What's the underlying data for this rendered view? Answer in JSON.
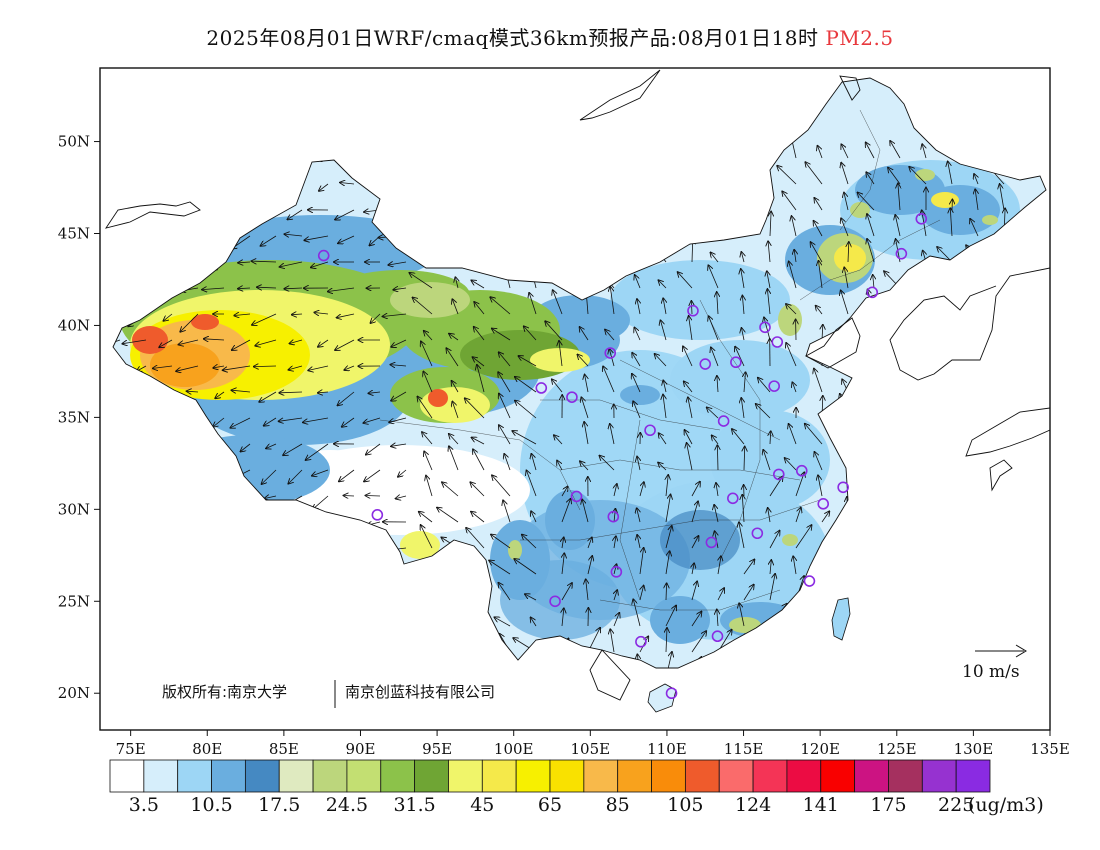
{
  "title": {
    "main": "2025年08月01日WRF/cmaq模式36km预报产品:08月01日18时",
    "product": "PM2.5"
  },
  "map": {
    "lon_range": [
      73,
      135
    ],
    "lat_range": [
      18,
      54
    ],
    "lat_ticks": [
      {
        "value": 20,
        "label": "20N"
      },
      {
        "value": 25,
        "label": "25N"
      },
      {
        "value": 30,
        "label": "30N"
      },
      {
        "value": 35,
        "label": "35N"
      },
      {
        "value": 40,
        "label": "40N"
      },
      {
        "value": 45,
        "label": "45N"
      },
      {
        "value": 50,
        "label": "50N"
      }
    ],
    "lon_ticks": [
      {
        "value": 75,
        "label": "75E"
      },
      {
        "value": 80,
        "label": "80E"
      },
      {
        "value": 85,
        "label": "85E"
      },
      {
        "value": 90,
        "label": "90E"
      },
      {
        "value": 95,
        "label": "95E"
      },
      {
        "value": 100,
        "label": "100E"
      },
      {
        "value": 105,
        "label": "105E"
      },
      {
        "value": 110,
        "label": "110E"
      },
      {
        "value": 115,
        "label": "115E"
      },
      {
        "value": 120,
        "label": "120E"
      },
      {
        "value": 125,
        "label": "125E"
      },
      {
        "value": 130,
        "label": "130E"
      },
      {
        "value": 135,
        "label": "135E"
      }
    ],
    "copyright_left": "版权所有:南京大学",
    "copyright_right": "南京创蓝科技有限公司",
    "wind_reference": "10 m/s",
    "colors": {
      "very_low": "#d6eefb",
      "low": "#9dd6f5",
      "mid_blue": "#6aaedf",
      "deep_blue": "#4589c2",
      "light_green": "#bcd67c",
      "green": "#8cc24a",
      "yellow": "#f7f000",
      "orange": "#f8a21d",
      "red_orange": "#ef5b2c",
      "station_marker": "#8b2be2"
    },
    "stations": [
      {
        "lon": 87.6,
        "lat": 43.8
      },
      {
        "lon": 91.1,
        "lat": 29.7
      },
      {
        "lon": 101.8,
        "lat": 36.6
      },
      {
        "lon": 103.8,
        "lat": 36.1
      },
      {
        "lon": 106.3,
        "lat": 38.5
      },
      {
        "lon": 104.1,
        "lat": 30.7
      },
      {
        "lon": 106.5,
        "lat": 29.6
      },
      {
        "lon": 106.7,
        "lat": 26.6
      },
      {
        "lon": 102.7,
        "lat": 25.0
      },
      {
        "lon": 108.9,
        "lat": 34.3
      },
      {
        "lon": 111.7,
        "lat": 40.8
      },
      {
        "lon": 112.5,
        "lat": 37.9
      },
      {
        "lon": 114.5,
        "lat": 38.0
      },
      {
        "lon": 116.4,
        "lat": 39.9
      },
      {
        "lon": 117.2,
        "lat": 39.1
      },
      {
        "lon": 117.0,
        "lat": 36.7
      },
      {
        "lon": 113.7,
        "lat": 34.8
      },
      {
        "lon": 117.3,
        "lat": 31.9
      },
      {
        "lon": 118.8,
        "lat": 32.1
      },
      {
        "lon": 121.5,
        "lat": 31.2
      },
      {
        "lon": 120.2,
        "lat": 30.3
      },
      {
        "lon": 114.3,
        "lat": 30.6
      },
      {
        "lon": 112.9,
        "lat": 28.2
      },
      {
        "lon": 115.9,
        "lat": 28.7
      },
      {
        "lon": 119.3,
        "lat": 26.1
      },
      {
        "lon": 113.3,
        "lat": 23.1
      },
      {
        "lon": 108.3,
        "lat": 22.8
      },
      {
        "lon": 110.3,
        "lat": 20.0
      },
      {
        "lon": 123.4,
        "lat": 41.8
      },
      {
        "lon": 125.3,
        "lat": 43.9
      },
      {
        "lon": 126.6,
        "lat": 45.8
      }
    ]
  },
  "legend": {
    "colors": [
      "#ffffff",
      "#d6eefb",
      "#9dd6f5",
      "#6aaedf",
      "#4589c2",
      "#dfeac0",
      "#bcd67c",
      "#c3df72",
      "#8cc24a",
      "#6fa534",
      "#f0f56a",
      "#f5e94a",
      "#f7f000",
      "#f9e100",
      "#f8b94a",
      "#f8a21d",
      "#f98c0a",
      "#ef5b2c",
      "#fa6b6b",
      "#f43456",
      "#ec0c43",
      "#f90000",
      "#cc1382",
      "#a5305f",
      "#9632d0",
      "#8a2be2"
    ],
    "labels": [
      {
        "index": 1,
        "text": "3.5"
      },
      {
        "index": 3,
        "text": "10.5"
      },
      {
        "index": 5,
        "text": "17.5"
      },
      {
        "index": 7,
        "text": "24.5"
      },
      {
        "index": 9,
        "text": "31.5"
      },
      {
        "index": 11,
        "text": "45"
      },
      {
        "index": 13,
        "text": "65"
      },
      {
        "index": 15,
        "text": "85"
      },
      {
        "index": 17,
        "text": "105"
      },
      {
        "index": 19,
        "text": "124"
      },
      {
        "index": 21,
        "text": "141"
      },
      {
        "index": 23,
        "text": "175"
      },
      {
        "index": 25,
        "text": "225"
      }
    ],
    "unit": "(ug/m3)"
  }
}
